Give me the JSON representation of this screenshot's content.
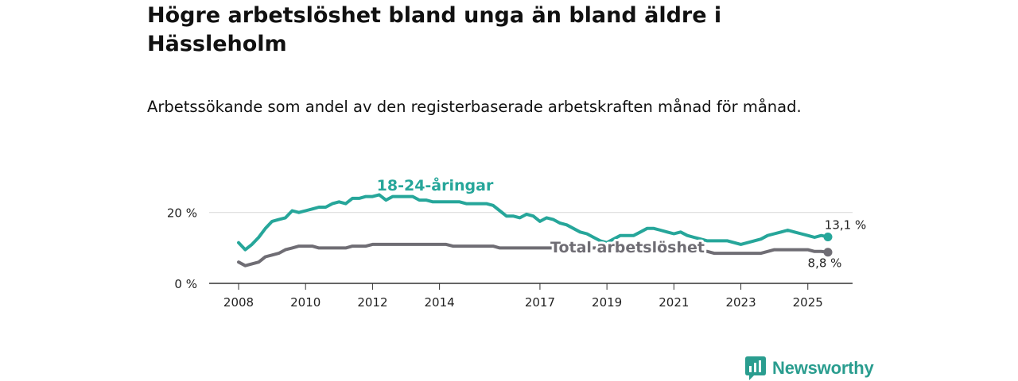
{
  "header": {
    "title": "Högre arbetslöshet bland unga än bland äldre i Hässleholm",
    "subtitle": "Arbetssökande som andel av den registerbaserade arbetskraften månad för månad."
  },
  "brand": {
    "name": "Newsworthy",
    "color": "#26a69a"
  },
  "chart_data": {
    "type": "line",
    "title": "Högre arbetslöshet bland unga än bland äldre i Hässleholm",
    "subtitle": "Arbetssökande som andel av den registerbaserade arbetskraften månad för månad.",
    "xlabel": "",
    "ylabel": "",
    "xlim": [
      2007.9,
      2025.8
    ],
    "ylim": [
      0,
      28
    ],
    "grid": true,
    "y_ticks": [
      {
        "value": 0,
        "label": "0 %"
      },
      {
        "value": 20,
        "label": "20 %"
      }
    ],
    "x_ticks": [
      {
        "value": 2008,
        "label": "2008"
      },
      {
        "value": 2010,
        "label": "2010"
      },
      {
        "value": 2012,
        "label": "2012"
      },
      {
        "value": 2014,
        "label": "2014"
      },
      {
        "value": 2017,
        "label": "2017"
      },
      {
        "value": 2019,
        "label": "2019"
      },
      {
        "value": 2021,
        "label": "2021"
      },
      {
        "value": 2023,
        "label": "2023"
      },
      {
        "value": 2025,
        "label": "2025"
      }
    ],
    "series": [
      {
        "name": "18-24-åringar",
        "color": "#26a69a",
        "last_label": "13,1 %",
        "x": [
          2008.0,
          2008.2,
          2008.4,
          2008.6,
          2008.8,
          2009.0,
          2009.2,
          2009.4,
          2009.6,
          2009.8,
          2010.0,
          2010.2,
          2010.4,
          2010.6,
          2010.8,
          2011.0,
          2011.2,
          2011.4,
          2011.6,
          2011.8,
          2012.0,
          2012.2,
          2012.4,
          2012.6,
          2012.8,
          2013.0,
          2013.2,
          2013.4,
          2013.6,
          2013.8,
          2014.0,
          2014.2,
          2014.4,
          2014.6,
          2014.8,
          2015.0,
          2015.2,
          2015.4,
          2015.6,
          2015.8,
          2016.0,
          2016.2,
          2016.4,
          2016.6,
          2016.8,
          2017.0,
          2017.2,
          2017.4,
          2017.6,
          2017.8,
          2018.0,
          2018.2,
          2018.4,
          2018.6,
          2018.8,
          2019.0,
          2019.2,
          2019.4,
          2019.6,
          2019.8,
          2020.0,
          2020.2,
          2020.4,
          2020.6,
          2020.8,
          2021.0,
          2021.2,
          2021.4,
          2021.6,
          2021.8,
          2022.0,
          2022.2,
          2022.4,
          2022.6,
          2022.8,
          2023.0,
          2023.2,
          2023.4,
          2023.6,
          2023.8,
          2024.0,
          2024.2,
          2024.4,
          2024.6,
          2024.8,
          2025.0,
          2025.2,
          2025.4,
          2025.6
        ],
        "values": [
          11.5,
          9.5,
          11.0,
          13.0,
          15.5,
          17.5,
          18.0,
          18.5,
          20.5,
          20.0,
          20.5,
          21.0,
          21.5,
          21.5,
          22.5,
          23.0,
          22.5,
          24.0,
          24.0,
          24.5,
          24.5,
          25.0,
          23.5,
          24.5,
          24.5,
          24.5,
          24.5,
          23.5,
          23.5,
          23.0,
          23.0,
          23.0,
          23.0,
          23.0,
          22.5,
          22.5,
          22.5,
          22.5,
          22.0,
          20.5,
          19.0,
          19.0,
          18.5,
          19.5,
          19.0,
          17.5,
          18.5,
          18.0,
          17.0,
          16.5,
          15.5,
          14.5,
          14.0,
          13.0,
          12.0,
          11.5,
          12.5,
          13.5,
          13.5,
          13.5,
          14.5,
          15.5,
          15.5,
          15.0,
          14.5,
          14.0,
          14.5,
          13.5,
          13.0,
          12.5,
          12.0,
          12.0,
          12.0,
          12.0,
          11.5,
          11.0,
          11.5,
          12.0,
          12.5,
          13.5,
          14.0,
          14.5,
          15.0,
          14.5,
          14.0,
          13.5,
          13.0,
          13.5,
          13.1
        ]
      },
      {
        "name": "Total arbetslöshet",
        "color": "#6f6d74",
        "last_label": "8,8 %",
        "x": [
          2008.0,
          2008.2,
          2008.4,
          2008.6,
          2008.8,
          2009.0,
          2009.2,
          2009.4,
          2009.6,
          2009.8,
          2010.0,
          2010.2,
          2010.4,
          2010.6,
          2010.8,
          2011.0,
          2011.2,
          2011.4,
          2011.6,
          2011.8,
          2012.0,
          2012.2,
          2012.4,
          2012.6,
          2012.8,
          2013.0,
          2013.2,
          2013.4,
          2013.6,
          2013.8,
          2014.0,
          2014.2,
          2014.4,
          2014.6,
          2014.8,
          2015.0,
          2015.2,
          2015.4,
          2015.6,
          2015.8,
          2016.0,
          2016.2,
          2016.4,
          2016.6,
          2016.8,
          2017.0,
          2017.2,
          2017.4,
          2017.6,
          2017.8,
          2018.0,
          2018.2,
          2018.4,
          2018.6,
          2018.8,
          2019.0,
          2019.2,
          2019.4,
          2019.6,
          2019.8,
          2020.0,
          2020.2,
          2020.4,
          2020.6,
          2020.8,
          2021.0,
          2021.2,
          2021.4,
          2021.6,
          2021.8,
          2022.0,
          2022.2,
          2022.4,
          2022.6,
          2022.8,
          2023.0,
          2023.2,
          2023.4,
          2023.6,
          2023.8,
          2024.0,
          2024.2,
          2024.4,
          2024.6,
          2024.8,
          2025.0,
          2025.2,
          2025.4,
          2025.6
        ],
        "values": [
          6.0,
          5.0,
          5.5,
          6.0,
          7.5,
          8.0,
          8.5,
          9.5,
          10.0,
          10.5,
          10.5,
          10.5,
          10.0,
          10.0,
          10.0,
          10.0,
          10.0,
          10.5,
          10.5,
          10.5,
          11.0,
          11.0,
          11.0,
          11.0,
          11.0,
          11.0,
          11.0,
          11.0,
          11.0,
          11.0,
          11.0,
          11.0,
          10.5,
          10.5,
          10.5,
          10.5,
          10.5,
          10.5,
          10.5,
          10.0,
          10.0,
          10.0,
          10.0,
          10.0,
          10.0,
          10.0,
          10.0,
          10.0,
          10.0,
          10.0,
          10.0,
          10.0,
          10.0,
          10.0,
          10.0,
          10.0,
          10.0,
          10.0,
          10.0,
          10.0,
          10.0,
          10.0,
          10.0,
          10.0,
          9.5,
          9.5,
          9.5,
          9.5,
          9.0,
          9.0,
          9.0,
          8.5,
          8.5,
          8.5,
          8.5,
          8.5,
          8.5,
          8.5,
          8.5,
          9.0,
          9.5,
          9.5,
          9.5,
          9.5,
          9.5,
          9.5,
          9.0,
          9.0,
          8.8
        ]
      }
    ]
  }
}
